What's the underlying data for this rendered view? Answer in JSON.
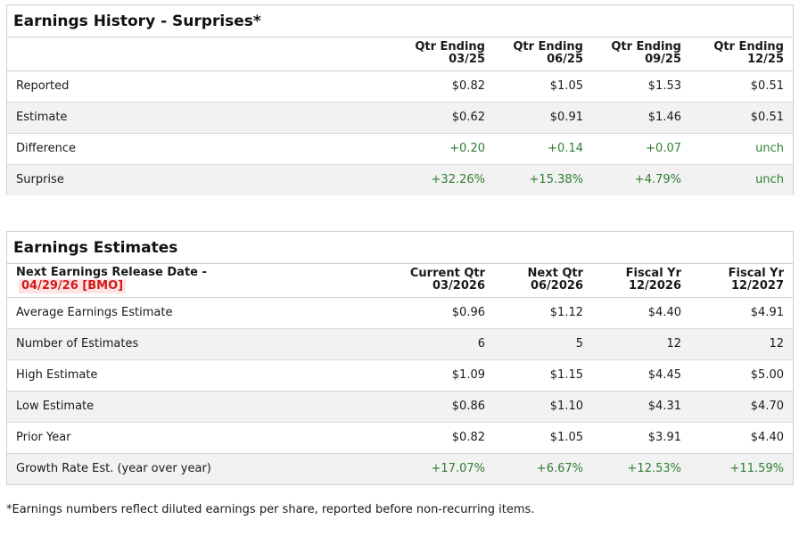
{
  "history": {
    "title": "Earnings History - Surprises*",
    "columns": [
      {
        "line1": "Qtr Ending",
        "line2": "03/25"
      },
      {
        "line1": "Qtr Ending",
        "line2": "06/25"
      },
      {
        "line1": "Qtr Ending",
        "line2": "09/25"
      },
      {
        "line1": "Qtr Ending",
        "line2": "12/25"
      }
    ],
    "rows": [
      {
        "label": "Reported",
        "values": [
          "$0.82",
          "$1.05",
          "$1.53",
          "$0.51"
        ]
      },
      {
        "label": "Estimate",
        "values": [
          "$0.62",
          "$0.91",
          "$1.46",
          "$0.51"
        ]
      },
      {
        "label": "Difference",
        "values": [
          "+0.20",
          "+0.14",
          "+0.07",
          "unch"
        ]
      },
      {
        "label": "Surprise",
        "values": [
          "+32.26%",
          "+15.38%",
          "+4.79%",
          "unch"
        ]
      }
    ]
  },
  "estimates": {
    "title": "Earnings Estimates",
    "release_label": "Next Earnings Release Date -",
    "release_date": "04/29/26 [BMO]",
    "columns": [
      {
        "line1": "Current Qtr",
        "line2": "03/2026"
      },
      {
        "line1": "Next Qtr",
        "line2": "06/2026"
      },
      {
        "line1": "Fiscal Yr",
        "line2": "12/2026"
      },
      {
        "line1": "Fiscal Yr",
        "line2": "12/2027"
      }
    ],
    "rows": [
      {
        "label": "Average Earnings Estimate",
        "values": [
          "$0.96",
          "$1.12",
          "$4.40",
          "$4.91"
        ]
      },
      {
        "label": "Number of Estimates",
        "values": [
          "6",
          "5",
          "12",
          "12"
        ]
      },
      {
        "label": "High Estimate",
        "values": [
          "$1.09",
          "$1.15",
          "$4.45",
          "$5.00"
        ]
      },
      {
        "label": "Low Estimate",
        "values": [
          "$0.86",
          "$1.10",
          "$4.31",
          "$4.70"
        ]
      },
      {
        "label": "Prior Year",
        "values": [
          "$0.82",
          "$1.05",
          "$3.91",
          "$4.40"
        ]
      },
      {
        "label": "Growth Rate Est. (year over year)",
        "values": [
          "+17.07%",
          "+6.67%",
          "+12.53%",
          "+11.59%"
        ]
      }
    ]
  },
  "footnote": "*Earnings numbers reflect diluted earnings per share, reported before non-recurring items.",
  "colors": {
    "positive": "#2f7d32",
    "release_date_text": "#d11a1a",
    "release_date_bg": "#fde3e3"
  }
}
